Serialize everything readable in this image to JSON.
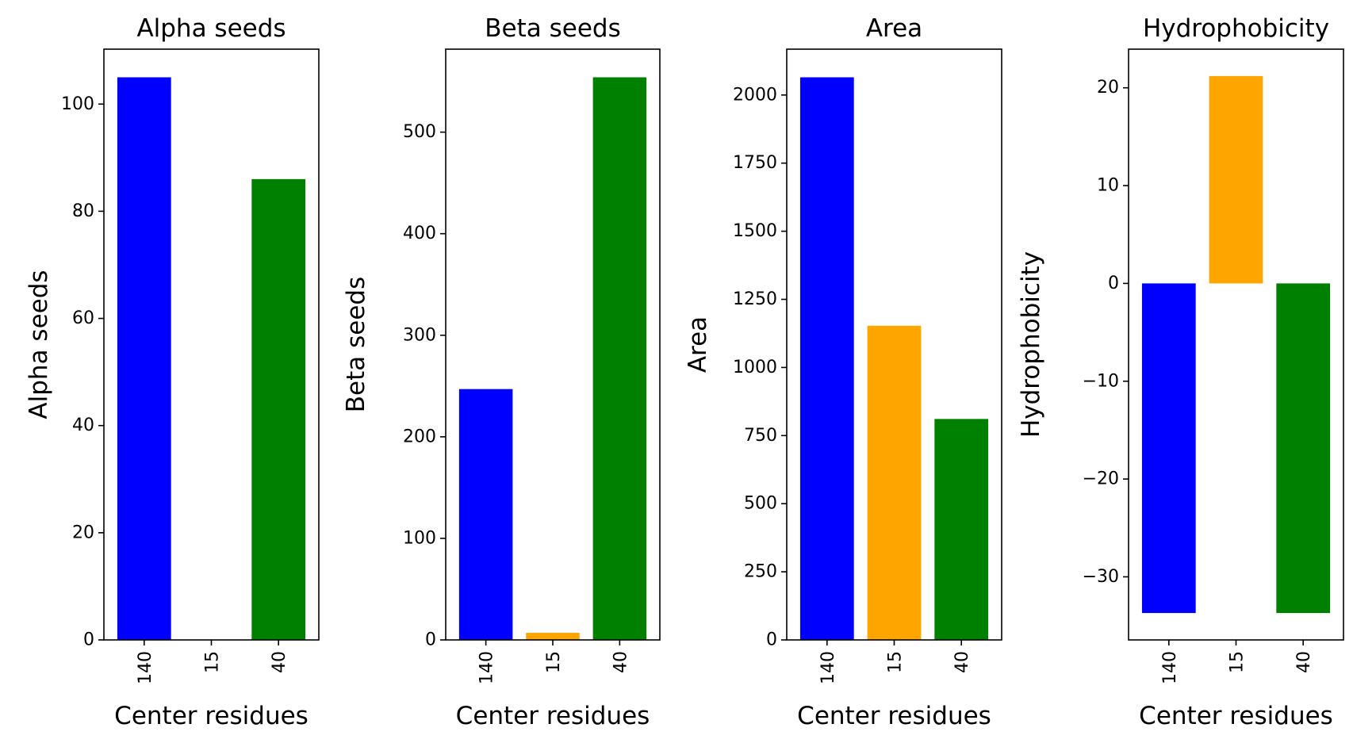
{
  "chart_data": [
    {
      "type": "bar",
      "title": "Alpha seeds",
      "xlabel": "Center residues",
      "ylabel": "Alpha seeds",
      "categories": [
        "140",
        "15",
        "40"
      ],
      "values": [
        105,
        0,
        86
      ],
      "colors": [
        "#0000ff",
        "#ffa500",
        "#008000"
      ],
      "ylim": [
        0,
        110.25
      ],
      "yticks": [
        0,
        20,
        40,
        60,
        80,
        100
      ],
      "ytick_labels": [
        "0",
        "20",
        "40",
        "60",
        "80",
        "100"
      ],
      "grid": false
    },
    {
      "type": "bar",
      "title": "Beta seeds",
      "xlabel": "Center residues",
      "ylabel": "Beta seeds",
      "categories": [
        "140",
        "15",
        "40"
      ],
      "values": [
        247,
        7,
        554
      ],
      "colors": [
        "#0000ff",
        "#ffa500",
        "#008000"
      ],
      "ylim": [
        0,
        581.7
      ],
      "yticks": [
        0,
        100,
        200,
        300,
        400,
        500
      ],
      "ytick_labels": [
        "0",
        "100",
        "200",
        "300",
        "400",
        "500"
      ],
      "grid": false
    },
    {
      "type": "bar",
      "title": "Area",
      "xlabel": "Center residues",
      "ylabel": "Area",
      "categories": [
        "140",
        "15",
        "40"
      ],
      "values": [
        2065,
        1153,
        811
      ],
      "colors": [
        "#0000ff",
        "#ffa500",
        "#008000"
      ],
      "ylim": [
        0,
        2168.25
      ],
      "yticks": [
        0,
        250,
        500,
        750,
        1000,
        1250,
        1500,
        1750,
        2000
      ],
      "ytick_labels": [
        "0",
        "250",
        "500",
        "750",
        "1000",
        "1250",
        "1500",
        "1750",
        "2000"
      ],
      "grid": false
    },
    {
      "type": "bar",
      "title": "Hydrophobicity",
      "xlabel": "Center residues",
      "ylabel": "Hydrophobicity",
      "categories": [
        "140",
        "15",
        "40"
      ],
      "values": [
        -33.7,
        21.2,
        -33.7
      ],
      "colors": [
        "#0000ff",
        "#ffa500",
        "#008000"
      ],
      "ylim": [
        -36.45,
        23.95
      ],
      "yticks": [
        -30,
        -20,
        -10,
        0,
        10,
        20
      ],
      "ytick_labels": [
        "−30",
        "−20",
        "−10",
        "0",
        "10",
        "20"
      ],
      "grid": false
    }
  ]
}
